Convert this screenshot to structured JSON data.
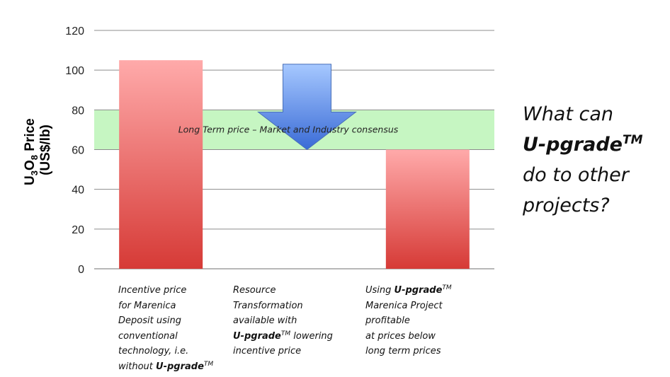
{
  "chart_data": {
    "type": "bar",
    "title": "",
    "xlabel": "",
    "ylabel": {
      "prefix": "U",
      "sub1": "3",
      "mid": "O",
      "sub2": "8",
      "rest": " Price",
      "line2": "(US$/lb)"
    },
    "ylim": [
      0,
      120
    ],
    "yticks": [
      0,
      20,
      40,
      60,
      80,
      100,
      120
    ],
    "grid": true,
    "categories": [
      "Incentive price for Marenica Deposit using conventional technology",
      "Resource Transformation available with U-pgrade",
      "Using U-pgrade Marenica Project profitable at prices below long term prices"
    ],
    "values": [
      105,
      null,
      60
    ],
    "band": {
      "low": 60,
      "high": 80,
      "label": "Long Term price – Market and Industry consensus"
    },
    "arrow": {
      "from": 103,
      "to": 60,
      "category_index": 1
    },
    "colors": {
      "bar_top": "#ffaaaa",
      "bar_bottom": "#d63a36",
      "band": "#c6f6c2",
      "arrow_top": "#a6c8ff",
      "arrow_bottom": "#3a6bd6",
      "grid": "#8c8c8c"
    }
  },
  "captions": [
    {
      "lines": [
        [
          {
            "t": "Incentive price"
          }
        ],
        [
          {
            "t": "for Marenica"
          }
        ],
        [
          {
            "t": "Deposit using"
          }
        ],
        [
          {
            "t": "conventional"
          }
        ],
        [
          {
            "t": "technology, i.e."
          }
        ],
        [
          {
            "t": "without "
          },
          {
            "t": "U-pgrade",
            "b": true
          },
          {
            "t": "TM",
            "sup": true
          }
        ]
      ]
    },
    {
      "lines": [
        [
          {
            "t": "Resource"
          }
        ],
        [
          {
            "t": "Transformation"
          }
        ],
        [
          {
            "t": "available with"
          }
        ],
        [
          {
            "t": "U-pgrade",
            "b": true
          },
          {
            "t": "TM",
            "sup": true
          },
          {
            "t": " lowering"
          }
        ],
        [
          {
            "t": "incentive price"
          }
        ]
      ]
    },
    {
      "lines": [
        [
          {
            "t": "Using "
          },
          {
            "t": "U-pgrade",
            "b": true
          },
          {
            "t": "TM",
            "sup": true
          }
        ],
        [
          {
            "t": "Marenica Project"
          }
        ],
        [
          {
            "t": "profitable"
          }
        ],
        [
          {
            "t": "at prices below"
          }
        ],
        [
          {
            "t": "long term prices"
          }
        ]
      ]
    }
  ],
  "side_text": {
    "lines": [
      [
        {
          "t": "What can"
        }
      ],
      [
        {
          "t": "U-pgrade",
          "b": true
        },
        {
          "t": "TM",
          "sup": true,
          "b": true
        }
      ],
      [
        {
          "t": "do to other"
        }
      ],
      [
        {
          "t": "projects?"
        }
      ]
    ]
  }
}
